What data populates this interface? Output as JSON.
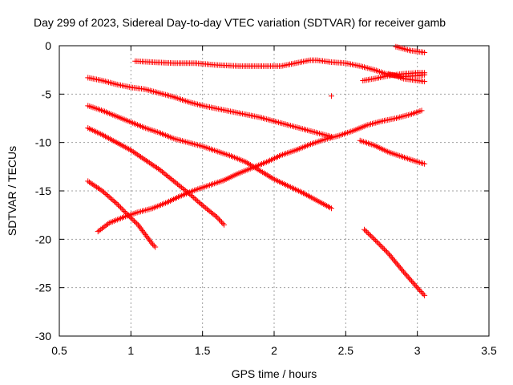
{
  "chart_data": {
    "type": "scatter",
    "title": "Day 299 of 2023, Sidereal Day-to-day VTEC variation (SDTVAR) for receiver gamb",
    "xlabel": "GPS time / hours",
    "ylabel": "SDTVAR / TECUs",
    "xlim": [
      0.5,
      3.5
    ],
    "ylim": [
      -30,
      0
    ],
    "xticks": [
      0.5,
      1,
      1.5,
      2,
      2.5,
      3,
      3.5
    ],
    "xtick_labels": [
      "0.5",
      "1",
      "1.5",
      "2",
      "2.5",
      "3",
      "3.5"
    ],
    "yticks": [
      0,
      -5,
      -10,
      -15,
      -20,
      -25,
      -30
    ],
    "ytick_labels": [
      "0",
      "-5",
      "-10",
      "-15",
      "-20",
      "-25",
      "-30"
    ],
    "grid": true,
    "marker": "+",
    "color": "#ff0000",
    "series": [
      {
        "x": [
          0.7,
          0.8,
          0.9,
          1.0,
          1.1,
          1.2,
          1.3,
          1.4,
          1.5,
          1.6,
          1.7,
          1.8,
          1.9,
          2.0,
          2.1,
          2.2,
          2.3,
          2.4
        ],
        "y": [
          -6.2,
          -6.7,
          -7.3,
          -7.9,
          -8.5,
          -9.0,
          -9.6,
          -10.0,
          -10.4,
          -10.9,
          -11.4,
          -12.0,
          -12.9,
          -13.8,
          -14.5,
          -15.2,
          -16.0,
          -16.8
        ]
      },
      {
        "x": [
          0.7,
          0.8,
          0.9,
          1.0,
          1.1,
          1.2,
          1.3,
          1.4,
          1.5,
          1.6,
          1.7,
          1.8,
          1.9,
          2.0,
          2.1,
          2.2,
          2.3,
          2.4
        ],
        "y": [
          -3.3,
          -3.6,
          -4.0,
          -4.3,
          -4.5,
          -4.9,
          -5.3,
          -5.8,
          -6.2,
          -6.5,
          -6.8,
          -7.1,
          -7.4,
          -7.8,
          -8.2,
          -8.6,
          -9.0,
          -9.4
        ]
      },
      {
        "x": [
          0.7,
          0.8,
          0.9,
          1.0,
          1.1,
          1.2,
          1.3,
          1.4,
          1.5,
          1.6,
          1.65
        ],
        "y": [
          -8.5,
          -9.2,
          -10.0,
          -10.8,
          -11.8,
          -12.8,
          -14.0,
          -15.2,
          -16.5,
          -17.7,
          -18.5
        ]
      },
      {
        "x": [
          0.7,
          0.8,
          0.9,
          1.0,
          1.05,
          1.1,
          1.15,
          1.17
        ],
        "y": [
          -14.0,
          -15.0,
          -16.3,
          -17.8,
          -18.5,
          -19.5,
          -20.5,
          -20.8
        ]
      },
      {
        "x": [
          0.77,
          0.85,
          0.95,
          1.05,
          1.15,
          1.25,
          1.35,
          1.45,
          1.55,
          1.65,
          1.75,
          1.85,
          1.95,
          2.05,
          2.15,
          2.25,
          2.35,
          2.45,
          2.55,
          2.65,
          2.75,
          2.85,
          2.95,
          3.03
        ],
        "y": [
          -19.2,
          -18.3,
          -17.7,
          -17.2,
          -16.8,
          -16.2,
          -15.5,
          -14.9,
          -14.4,
          -13.9,
          -13.2,
          -12.6,
          -12.0,
          -11.3,
          -10.8,
          -10.2,
          -9.7,
          -9.3,
          -8.8,
          -8.2,
          -7.8,
          -7.5,
          -7.1,
          -6.7
        ]
      },
      {
        "x": [
          1.03,
          1.15,
          1.3,
          1.45,
          1.6,
          1.75,
          1.9,
          2.05,
          2.15,
          2.25,
          2.3,
          2.4,
          2.5,
          2.6,
          2.7,
          2.8,
          2.9,
          3.0,
          3.05
        ],
        "y": [
          -1.6,
          -1.7,
          -1.8,
          -1.8,
          -2.0,
          -2.1,
          -2.1,
          -2.1,
          -1.8,
          -1.5,
          -1.5,
          -1.7,
          -1.8,
          -2.1,
          -2.5,
          -3.0,
          -3.2,
          -3.1,
          -3.0
        ]
      },
      {
        "x": [
          2.62,
          2.7,
          2.8,
          2.9,
          3.0,
          3.05
        ],
        "y": [
          -3.6,
          -3.4,
          -3.1,
          -2.9,
          -2.8,
          -2.8
        ]
      },
      {
        "x": [
          2.85,
          2.9,
          2.95,
          3.0,
          3.05
        ],
        "y": [
          -0.1,
          -0.3,
          -0.5,
          -0.6,
          -0.7
        ]
      },
      {
        "x": [
          2.8,
          2.85,
          2.9,
          2.95,
          3.0,
          3.05
        ],
        "y": [
          -2.9,
          -3.1,
          -3.4,
          -3.5,
          -3.6,
          -3.7
        ]
      },
      {
        "x": [
          2.6,
          2.7,
          2.8,
          2.9,
          3.0,
          3.05
        ],
        "y": [
          -9.8,
          -10.3,
          -11.0,
          -11.5,
          -12.0,
          -12.2
        ]
      },
      {
        "x": [
          2.63,
          2.7,
          2.8,
          2.9,
          3.0,
          3.05
        ],
        "y": [
          -19.0,
          -20.0,
          -21.5,
          -23.3,
          -25.0,
          -25.8
        ]
      },
      {
        "x": [
          2.4
        ],
        "y": [
          -5.2
        ]
      }
    ]
  }
}
